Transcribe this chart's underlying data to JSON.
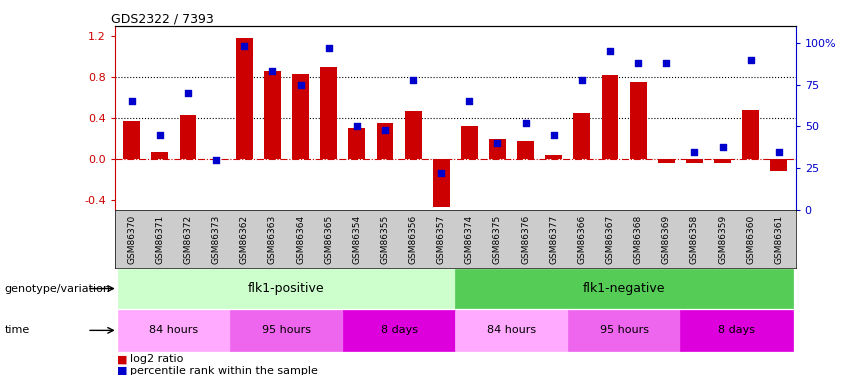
{
  "title": "GDS2322 / 7393",
  "samples": [
    "GSM86370",
    "GSM86371",
    "GSM86372",
    "GSM86373",
    "GSM86362",
    "GSM86363",
    "GSM86364",
    "GSM86365",
    "GSM86354",
    "GSM86355",
    "GSM86356",
    "GSM86357",
    "GSM86374",
    "GSM86375",
    "GSM86376",
    "GSM86377",
    "GSM86366",
    "GSM86367",
    "GSM86368",
    "GSM86369",
    "GSM86358",
    "GSM86359",
    "GSM86360",
    "GSM86361"
  ],
  "log2_ratio": [
    0.37,
    0.07,
    0.43,
    0.0,
    1.18,
    0.86,
    0.83,
    0.9,
    0.3,
    0.35,
    0.47,
    -0.47,
    0.32,
    0.2,
    0.18,
    0.04,
    0.45,
    0.82,
    0.75,
    -0.04,
    -0.04,
    -0.04,
    0.48,
    -0.12
  ],
  "percentile": [
    65,
    45,
    70,
    30,
    98,
    83,
    75,
    97,
    50,
    48,
    78,
    22,
    65,
    40,
    52,
    45,
    78,
    95,
    88,
    88,
    35,
    38,
    90,
    35
  ],
  "dotted_lines": [
    0.8,
    0.4
  ],
  "ylim": [
    -0.5,
    1.3
  ],
  "right_ylim": [
    0,
    110
  ],
  "right_yticks": [
    0,
    25,
    50,
    75,
    100
  ],
  "right_yticklabels": [
    "0",
    "25",
    "50",
    "75",
    "100%"
  ],
  "bar_color": "#cc0000",
  "dot_color": "#0000cc",
  "zero_line_color": "#cc0000",
  "dot_line_color": "#000000",
  "genotype_positive_color": "#ccffcc",
  "genotype_negative_color": "#55cc55",
  "time_color_light": "#ffaaff",
  "time_color_mid": "#ee66ee",
  "time_color_dark": "#dd00dd",
  "genotype_positive_label": "flk1-positive",
  "genotype_negative_label": "flk1-negative",
  "genotype_label": "genotype/variation",
  "time_label": "time",
  "legend_bar": "log2 ratio",
  "legend_dot": "percentile rank within the sample",
  "xtick_bg": "#cccccc",
  "left_yticks": [
    -0.4,
    0.0,
    0.4,
    0.8,
    1.2
  ]
}
